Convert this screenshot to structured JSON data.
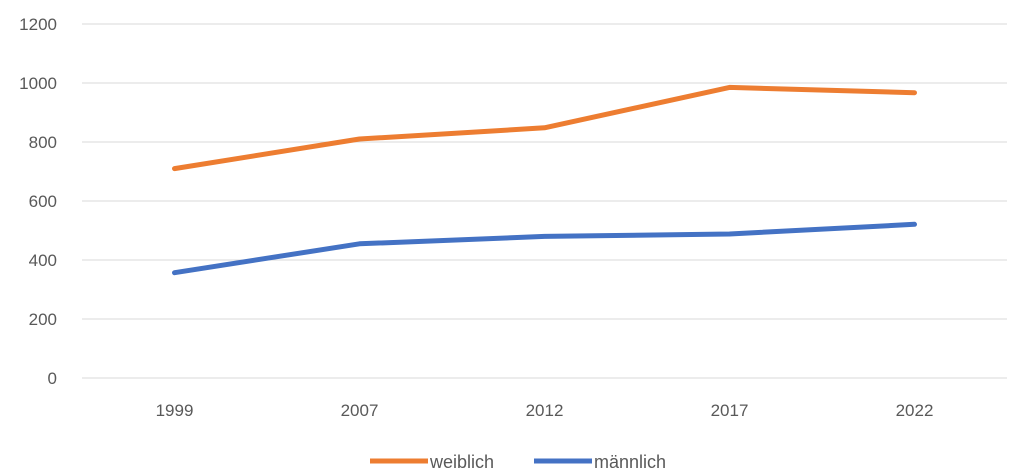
{
  "chart_data": {
    "type": "line",
    "categories": [
      "1999",
      "2007",
      "2012",
      "2017",
      "2022"
    ],
    "series": [
      {
        "name": "weiblich",
        "values": [
          710,
          810,
          848,
          985,
          967
        ],
        "color": "#ED7D31"
      },
      {
        "name": "männlich",
        "values": [
          357,
          455,
          480,
          488,
          521
        ],
        "color": "#4472C4"
      }
    ],
    "ylim": [
      0,
      1200
    ],
    "yticks": [
      "0",
      "200",
      "400",
      "600",
      "800",
      "1000",
      "1200"
    ],
    "grid": "horizontal",
    "legend_position": "bottom"
  }
}
